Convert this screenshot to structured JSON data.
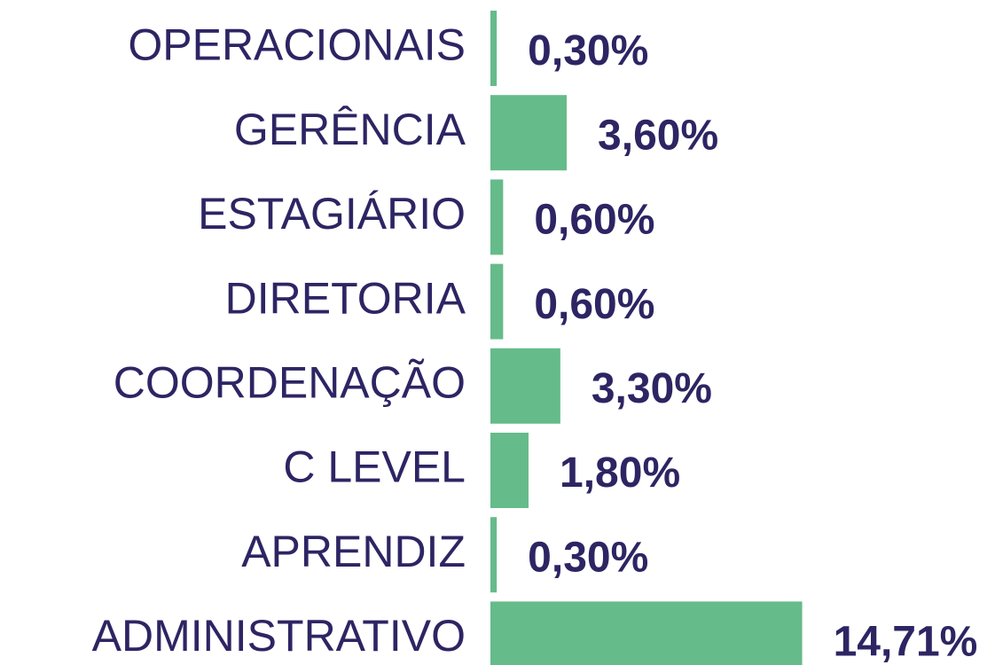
{
  "chart_data": {
    "type": "bar",
    "orientation": "horizontal",
    "categories": [
      "OPERACIONAIS",
      "GERÊNCIA",
      "ESTAGIÁRIO",
      "DIRETORIA",
      "COORDENAÇÃO",
      "C LEVEL",
      "APRENDIZ",
      "ADMINISTRATIVO"
    ],
    "values": [
      0.3,
      3.6,
      0.6,
      0.6,
      3.3,
      1.8,
      0.3,
      14.71
    ],
    "value_labels": [
      "0,30%",
      "3,60%",
      "0,60%",
      "0,60%",
      "3,30%",
      "1,80%",
      "0,30%",
      "14,71%"
    ],
    "color": "#66bb8a"
  }
}
